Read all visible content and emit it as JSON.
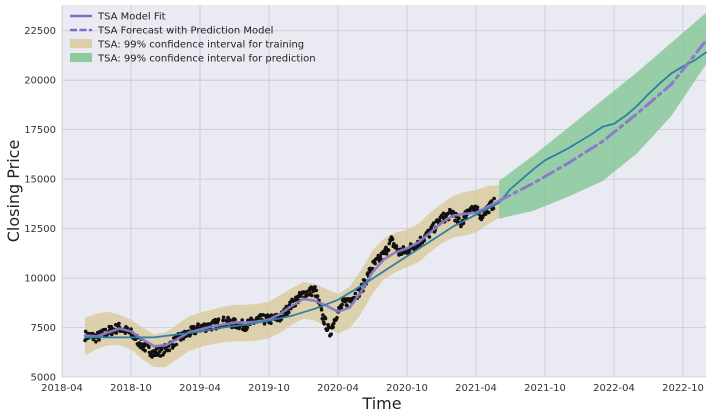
{
  "chart_data": {
    "type": "line",
    "title": "",
    "xlabel": "Time",
    "ylabel": "Closing Price",
    "xlim": [
      "2018-04",
      "2022-12"
    ],
    "ylim": [
      5000,
      23800
    ],
    "grid": true,
    "legend_position": "top-left",
    "x_tick_labels": [
      "2018-04",
      "2018-10",
      "2019-04",
      "2019-10",
      "2020-04",
      "2020-10",
      "2021-04",
      "2021-10",
      "2022-04",
      "2022-10"
    ],
    "y_ticks": [
      5000,
      7500,
      10000,
      12500,
      15000,
      17500,
      20000,
      22500
    ],
    "legend": [
      {
        "label": "TSA Model Fit",
        "kind": "line",
        "color": "#7a6fbf"
      },
      {
        "label": "TSA Forecast with Prediction Model",
        "kind": "dashed",
        "color": "#7a6fbf"
      },
      {
        "label": "TSA: 99% confidence interval for training",
        "kind": "band",
        "color": "#d9c99a"
      },
      {
        "label": "TSA: 99% confidence interval for prediction",
        "kind": "band",
        "color": "#7cc48e"
      }
    ],
    "series": [
      {
        "name": "TSA Model Fit",
        "style": "solid",
        "color": "#8a7bc8",
        "x": [
          "2018-06-01",
          "2018-07-01",
          "2018-08-01",
          "2018-09-01",
          "2018-10-01",
          "2018-11-01",
          "2018-12-01",
          "2019-01-01",
          "2019-02-01",
          "2019-03-01",
          "2019-04-01",
          "2019-05-01",
          "2019-06-01",
          "2019-07-01",
          "2019-08-01",
          "2019-09-01",
          "2019-10-01",
          "2019-11-01",
          "2019-12-01",
          "2020-01-01",
          "2020-02-01",
          "2020-03-01",
          "2020-04-01",
          "2020-05-01",
          "2020-06-01",
          "2020-07-01",
          "2020-08-01",
          "2020-09-01",
          "2020-10-01",
          "2020-11-01",
          "2020-12-01",
          "2021-01-01",
          "2021-02-01",
          "2021-03-01",
          "2021-04-01",
          "2021-05-01",
          "2021-06-01"
        ],
        "values": [
          7100,
          7050,
          7250,
          7450,
          7300,
          6900,
          6550,
          6600,
          6900,
          7250,
          7400,
          7550,
          7650,
          7750,
          7750,
          7800,
          7900,
          8200,
          8600,
          8950,
          8850,
          8600,
          8300,
          8500,
          9300,
          10300,
          10950,
          11300,
          11500,
          11800,
          12300,
          12800,
          13150,
          13250,
          13300,
          13600,
          13900
        ]
      },
      {
        "name": "Trend",
        "style": "solid",
        "color": "#2f7fa6",
        "x": [
          "2018-06-01",
          "2018-08-01",
          "2018-10-01",
          "2018-12-01",
          "2019-02-01",
          "2019-04-01",
          "2019-06-01",
          "2019-08-01",
          "2019-10-01",
          "2019-12-01",
          "2020-02-01",
          "2020-04-01",
          "2020-06-01",
          "2020-08-01",
          "2020-10-01",
          "2020-12-01",
          "2021-02-01",
          "2021-04-01",
          "2021-06-01",
          "2021-07-01",
          "2021-08-01",
          "2021-09-01",
          "2021-10-01",
          "2021-11-01",
          "2021-12-01",
          "2022-01-01",
          "2022-02-01",
          "2022-03-01",
          "2022-04-01",
          "2022-05-01",
          "2022-06-01",
          "2022-07-01",
          "2022-08-01",
          "2022-09-01",
          "2022-10-01",
          "2022-11-01",
          "2022-12-01"
        ],
        "values": [
          7000,
          7000,
          7000,
          7000,
          7150,
          7300,
          7500,
          7650,
          7850,
          8100,
          8450,
          8900,
          9600,
          10350,
          11100,
          11850,
          12600,
          13200,
          13800,
          14500,
          15000,
          15500,
          15950,
          16250,
          16550,
          16900,
          17250,
          17650,
          17800,
          18200,
          18700,
          19300,
          19850,
          20350,
          20700,
          21000,
          21400
        ]
      },
      {
        "name": "TSA Forecast with Prediction Model",
        "style": "dashdot",
        "color": "#8a7bc8",
        "x": [
          "2021-06-01",
          "2021-09-01",
          "2021-12-01",
          "2022-03-01",
          "2022-06-01",
          "2022-09-01",
          "2022-12-01"
        ],
        "values": [
          13900,
          14800,
          15800,
          16900,
          18300,
          19800,
          22000
        ]
      }
    ],
    "bands": [
      {
        "name": "TSA: 99% confidence interval for training",
        "color": "#d9c99a",
        "x": [
          "2018-06-01",
          "2018-07-01",
          "2018-08-01",
          "2018-09-01",
          "2018-10-01",
          "2018-11-01",
          "2018-12-01",
          "2019-01-01",
          "2019-02-01",
          "2019-03-01",
          "2019-04-01",
          "2019-05-01",
          "2019-06-01",
          "2019-07-01",
          "2019-08-01",
          "2019-09-01",
          "2019-10-01",
          "2019-11-01",
          "2019-12-01",
          "2020-01-01",
          "2020-02-01",
          "2020-03-01",
          "2020-04-01",
          "2020-05-01",
          "2020-06-01",
          "2020-07-01",
          "2020-08-01",
          "2020-09-01",
          "2020-10-01",
          "2020-11-01",
          "2020-12-01",
          "2021-01-01",
          "2021-02-01",
          "2021-03-01",
          "2021-04-01",
          "2021-05-01",
          "2021-06-01"
        ],
        "lower": [
          6100,
          6400,
          6600,
          6600,
          6400,
          5900,
          5500,
          5500,
          5900,
          6300,
          6500,
          6650,
          6750,
          6800,
          6800,
          6850,
          6950,
          7250,
          7650,
          7950,
          7850,
          7500,
          7200,
          7450,
          8200,
          9200,
          9950,
          10300,
          10550,
          10800,
          11300,
          11750,
          12050,
          12150,
          12300,
          12700,
          13050
        ],
        "upper": [
          8000,
          8200,
          8300,
          8150,
          7900,
          7500,
          7150,
          7250,
          7650,
          8050,
          8250,
          8400,
          8550,
          8650,
          8650,
          8700,
          8800,
          9150,
          9500,
          9800,
          9700,
          9450,
          9200,
          9550,
          10400,
          11400,
          12000,
          12300,
          12450,
          12750,
          13300,
          13750,
          14150,
          14350,
          14450,
          14650,
          14700
        ]
      },
      {
        "name": "TSA: 99% confidence interval for prediction",
        "color": "#7cc48e",
        "x": [
          "2021-06-01",
          "2021-09-01",
          "2021-12-01",
          "2022-03-01",
          "2022-06-01",
          "2022-09-01",
          "2022-12-01"
        ],
        "lower": [
          13000,
          13400,
          14100,
          14900,
          16300,
          18200,
          20800
        ],
        "upper": [
          14900,
          16200,
          17600,
          19000,
          20400,
          21900,
          23400
        ]
      }
    ],
    "scatter": {
      "name": "Closing Price",
      "color": "#111111",
      "anchors_x": [
        "2018-06-01",
        "2018-07-01",
        "2018-08-01",
        "2018-09-01",
        "2018-10-01",
        "2018-11-01",
        "2018-12-01",
        "2019-01-01",
        "2019-02-01",
        "2019-03-01",
        "2019-04-01",
        "2019-05-01",
        "2019-06-01",
        "2019-07-01",
        "2019-08-01",
        "2019-09-01",
        "2019-10-01",
        "2019-11-01",
        "2019-12-01",
        "2020-01-01",
        "2020-02-01",
        "2020-02-20",
        "2020-03-10",
        "2020-03-25",
        "2020-04-15",
        "2020-05-01",
        "2020-06-01",
        "2020-07-01",
        "2020-08-01",
        "2020-08-20",
        "2020-09-10",
        "2020-10-01",
        "2020-11-01",
        "2020-12-01",
        "2021-01-01",
        "2021-02-01",
        "2021-02-20",
        "2021-03-15",
        "2021-04-15",
        "2021-05-01",
        "2021-05-20"
      ],
      "anchors_y": [
        7100,
        7000,
        7300,
        7500,
        7200,
        6600,
        6200,
        6400,
        6900,
        7200,
        7500,
        7600,
        7800,
        7700,
        7600,
        7900,
        7900,
        8000,
        8700,
        9200,
        9400,
        8100,
        7200,
        8100,
        8700,
        8900,
        9400,
        10600,
        11200,
        11900,
        11300,
        11400,
        11800,
        12300,
        13000,
        13300,
        12700,
        13600,
        13200,
        13500,
        13800
      ],
      "spread": 250
    }
  }
}
